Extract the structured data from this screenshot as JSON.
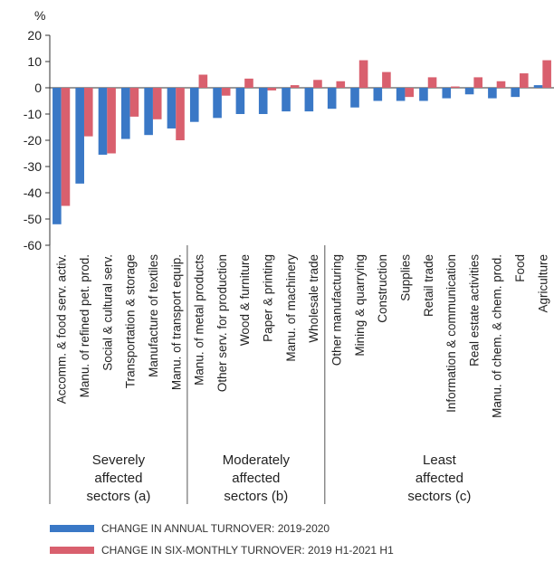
{
  "chart_data": {
    "type": "bar",
    "y_unit": "%",
    "ylim": [
      -60,
      20
    ],
    "yticks": [
      20,
      10,
      0,
      -10,
      -20,
      -30,
      -40,
      -50,
      -60
    ],
    "grid": false,
    "categories": [
      "Accomm. & food serv. activ.",
      "Manu. of refined pet. prod.",
      "Social & cultural serv.",
      "Transportation & storage",
      "Manufacture of textiles",
      "Manu. of transport equip.",
      "Manu. of metal products",
      "Other serv. for production",
      "Wood & furniture",
      "Paper & printing",
      "Manu. of machinery",
      "Wholesale trade",
      "Other manufacturing",
      "Mining & quarrying",
      "Construction",
      "Supplies",
      "Retail trade",
      "Information & communication",
      "Real estate activities",
      "Manu. of chem. & chem. prod.",
      "Food",
      "Agriculture"
    ],
    "series": [
      {
        "name": "CHANGE IN ANNUAL TURNOVER: 2019-2020",
        "color": "#3a78c6",
        "values": [
          -52,
          -36.5,
          -25.5,
          -19.5,
          -18,
          -15.5,
          -13,
          -11.5,
          -10,
          -10,
          -9,
          -9,
          -8,
          -7.5,
          -5,
          -5,
          -5,
          -4,
          -2.5,
          -4,
          -3.5,
          1
        ]
      },
      {
        "name": "CHANGE IN SIX-MONTHLY TURNOVER: 2019 H1-2021 H1",
        "color": "#d9606e",
        "values": [
          -45,
          -18.5,
          -25,
          -11,
          -12,
          -20,
          5,
          -3,
          3.5,
          -1,
          1,
          3,
          2.5,
          10.5,
          6,
          -3.5,
          4,
          0.5,
          4,
          2.5,
          5.5,
          10.5
        ]
      }
    ],
    "groups": [
      {
        "lines": [
          "Severely",
          "affected",
          "sectors (a)"
        ],
        "count": 6
      },
      {
        "lines": [
          "Moderately",
          "affected",
          "sectors (b)"
        ],
        "count": 6
      },
      {
        "lines": [
          "Least",
          "affected",
          "sectors (c)"
        ],
        "count": 10
      }
    ],
    "legend_position": "bottom"
  }
}
